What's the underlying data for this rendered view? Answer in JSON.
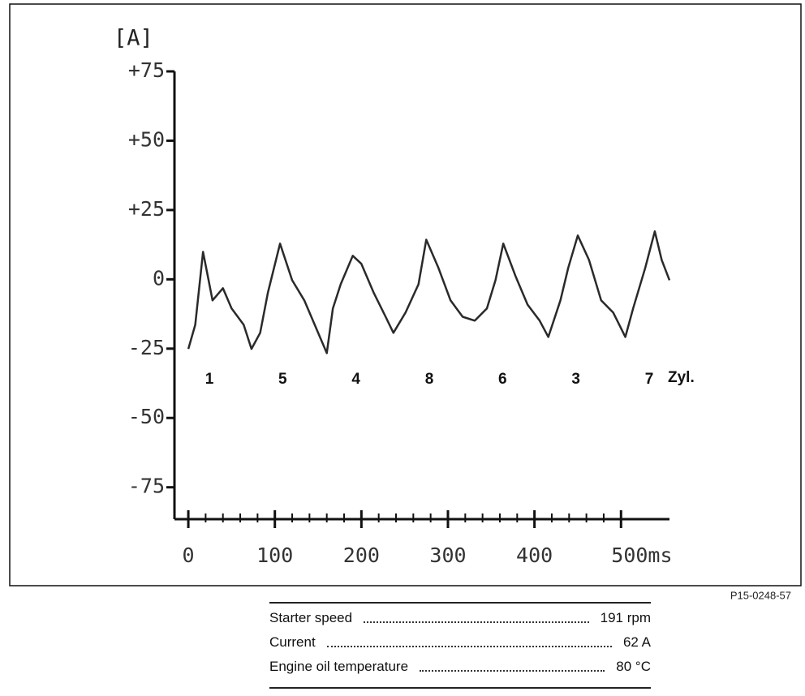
{
  "chart_data": {
    "type": "line",
    "y_label": "[A]",
    "x": [
      0,
      8,
      17,
      28,
      40,
      50,
      64,
      73,
      83,
      92,
      106,
      120,
      134,
      148,
      160,
      167,
      176,
      190,
      200,
      214,
      228,
      237,
      251,
      266,
      275,
      289,
      303,
      317,
      331,
      345,
      355,
      364,
      378,
      392,
      406,
      416,
      430,
      439,
      450,
      463,
      477,
      491,
      505,
      514,
      528,
      539,
      547,
      556
    ],
    "series": [
      {
        "color": "#2a2a2a",
        "values": [
          -25.1,
          -16.4,
          9.9,
          -7.6,
          -3.2,
          -10.5,
          -16.4,
          -25.1,
          -19.3,
          -4.7,
          12.9,
          -0.3,
          -7.6,
          -17.8,
          -26.6,
          -10.5,
          -1.8,
          8.5,
          5.6,
          -4.7,
          -13.5,
          -19.3,
          -12.0,
          -1.8,
          14.3,
          4.1,
          -7.6,
          -13.5,
          -14.9,
          -10.5,
          -0.3,
          12.9,
          1.2,
          -9.1,
          -14.9,
          -20.8,
          -7.6,
          4.1,
          15.8,
          7.0,
          -7.6,
          -12.0,
          -20.8,
          -10.5,
          4.1,
          17.3,
          7.0,
          -0.3
        ]
      }
    ],
    "xlim": [
      -16,
      556
    ],
    "ylim": [
      -86.5,
      75
    ],
    "xticks": [
      0,
      100,
      200,
      300,
      400,
      {
        "value": 500,
        "label": "500ms"
      }
    ],
    "yticks": [
      {
        "value": 75,
        "label": "+75"
      },
      {
        "value": 50,
        "label": "+50"
      },
      {
        "value": 25,
        "label": "+25"
      },
      0,
      -25,
      -50,
      -75
    ],
    "cylinders": [
      "1",
      "5",
      "4",
      "8",
      "6",
      "3",
      "7"
    ],
    "cylinder_unit": "Zyl."
  },
  "figure_id": "P15-0248-57",
  "parameters": [
    {
      "label": "Starter speed",
      "value": "191 rpm"
    },
    {
      "label": "Current",
      "value": "62 A"
    },
    {
      "label": "Engine oil temperature",
      "value": "80 °C"
    }
  ]
}
